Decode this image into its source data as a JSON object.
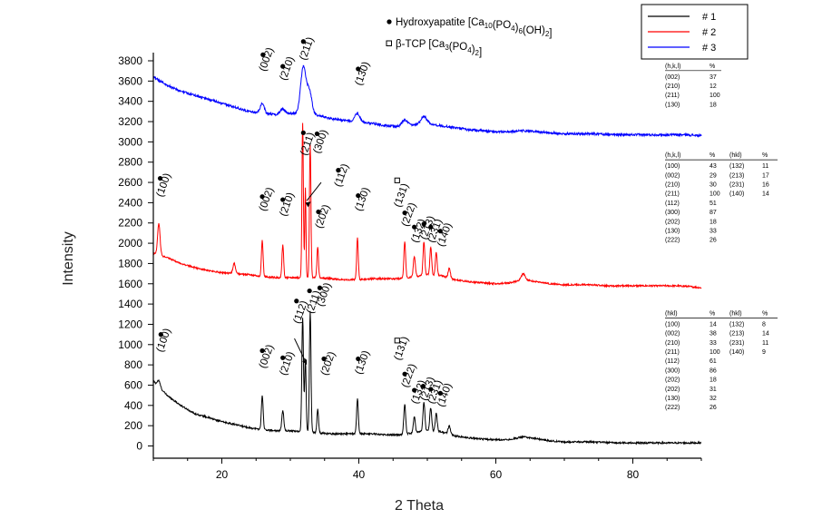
{
  "chart_data": {
    "type": "line",
    "xlabel": "2 Theta",
    "ylabel": "Intensity",
    "xlim": [
      10,
      90
    ],
    "ylim": [
      -100,
      3950
    ],
    "x_ticks": [
      20,
      40,
      60,
      80
    ],
    "y_ticks": [
      0,
      200,
      400,
      600,
      800,
      1000,
      1200,
      1400,
      1600,
      1800,
      2000,
      2200,
      2400,
      2600,
      2800,
      3000,
      3200,
      3400,
      3600,
      3800
    ],
    "legend_position": "top-right",
    "grid": false,
    "series": [
      {
        "name": "# 1",
        "color": "#000000",
        "baseline": [
          [
            10,
            640
          ],
          [
            12,
            500
          ],
          [
            14,
            400
          ],
          [
            16,
            320
          ],
          [
            18,
            280
          ],
          [
            20,
            240
          ],
          [
            22,
            210
          ],
          [
            24,
            180
          ],
          [
            26,
            160
          ],
          [
            28,
            150
          ],
          [
            30,
            150
          ],
          [
            32,
            140
          ],
          [
            34,
            130
          ],
          [
            36,
            120
          ],
          [
            38,
            120
          ],
          [
            40,
            120
          ],
          [
            42,
            120
          ],
          [
            44,
            110
          ],
          [
            46,
            110
          ],
          [
            48,
            130
          ],
          [
            50,
            150
          ],
          [
            52,
            140
          ],
          [
            54,
            100
          ],
          [
            56,
            80
          ],
          [
            58,
            70
          ],
          [
            60,
            60
          ],
          [
            62,
            65
          ],
          [
            64,
            90
          ],
          [
            66,
            70
          ],
          [
            68,
            50
          ],
          [
            70,
            40
          ],
          [
            72,
            40
          ],
          [
            74,
            40
          ],
          [
            76,
            35
          ],
          [
            78,
            30
          ],
          [
            80,
            30
          ],
          [
            82,
            30
          ],
          [
            84,
            30
          ],
          [
            86,
            30
          ],
          [
            88,
            30
          ],
          [
            90,
            30
          ]
        ],
        "peaks": [
          [
            10.8,
            60,
            0.3
          ],
          [
            25.9,
            340,
            0.18
          ],
          [
            28.9,
            200,
            0.2
          ],
          [
            31.8,
            1130,
            0.17
          ],
          [
            32.2,
            720,
            0.15
          ],
          [
            32.9,
            1200,
            0.16
          ],
          [
            34.0,
            230,
            0.17
          ],
          [
            39.8,
            340,
            0.18
          ],
          [
            46.7,
            290,
            0.2
          ],
          [
            48.1,
            160,
            0.2
          ],
          [
            49.5,
            280,
            0.2
          ],
          [
            50.5,
            230,
            0.2
          ],
          [
            51.3,
            180,
            0.2
          ],
          [
            53.2,
            80,
            0.25
          ]
        ]
      },
      {
        "name": "# 2",
        "color": "#ff0000",
        "baseline": [
          [
            10,
            1900
          ],
          [
            12,
            1860
          ],
          [
            14,
            1800
          ],
          [
            16,
            1760
          ],
          [
            18,
            1730
          ],
          [
            20,
            1710
          ],
          [
            22,
            1700
          ],
          [
            24,
            1690
          ],
          [
            26,
            1670
          ],
          [
            28,
            1660
          ],
          [
            30,
            1660
          ],
          [
            32,
            1660
          ],
          [
            34,
            1660
          ],
          [
            36,
            1650
          ],
          [
            38,
            1640
          ],
          [
            40,
            1640
          ],
          [
            42,
            1650
          ],
          [
            44,
            1650
          ],
          [
            46,
            1650
          ],
          [
            48,
            1670
          ],
          [
            50,
            1690
          ],
          [
            52,
            1680
          ],
          [
            54,
            1640
          ],
          [
            56,
            1620
          ],
          [
            58,
            1610
          ],
          [
            60,
            1600
          ],
          [
            62,
            1610
          ],
          [
            64,
            1640
          ],
          [
            66,
            1620
          ],
          [
            68,
            1600
          ],
          [
            70,
            1590
          ],
          [
            72,
            1590
          ],
          [
            74,
            1590
          ],
          [
            76,
            1580
          ],
          [
            78,
            1580
          ],
          [
            80,
            1580
          ],
          [
            82,
            1580
          ],
          [
            84,
            1580
          ],
          [
            86,
            1580
          ],
          [
            88,
            1575
          ],
          [
            90,
            1560
          ]
        ],
        "peaks": [
          [
            10.8,
            310,
            0.25
          ],
          [
            21.8,
            100,
            0.25
          ],
          [
            25.9,
            360,
            0.17
          ],
          [
            28.9,
            320,
            0.17
          ],
          [
            31.8,
            1520,
            0.15
          ],
          [
            32.2,
            880,
            0.12
          ],
          [
            32.9,
            1320,
            0.15
          ],
          [
            34.0,
            300,
            0.16
          ],
          [
            39.8,
            410,
            0.17
          ],
          [
            46.7,
            360,
            0.18
          ],
          [
            48.1,
            200,
            0.2
          ],
          [
            49.5,
            330,
            0.18
          ],
          [
            50.5,
            280,
            0.18
          ],
          [
            51.3,
            230,
            0.18
          ],
          [
            53.2,
            100,
            0.22
          ],
          [
            64.0,
            60,
            0.4
          ]
        ]
      },
      {
        "name": "# 3",
        "color": "#0000ff",
        "baseline": [
          [
            10,
            3640
          ],
          [
            12,
            3560
          ],
          [
            14,
            3500
          ],
          [
            16,
            3460
          ],
          [
            18,
            3420
          ],
          [
            20,
            3380
          ],
          [
            22,
            3340
          ],
          [
            24,
            3300
          ],
          [
            26,
            3280
          ],
          [
            28,
            3270
          ],
          [
            30,
            3280
          ],
          [
            32,
            3280
          ],
          [
            34,
            3260
          ],
          [
            36,
            3230
          ],
          [
            38,
            3210
          ],
          [
            40,
            3200
          ],
          [
            42,
            3180
          ],
          [
            44,
            3160
          ],
          [
            46,
            3150
          ],
          [
            48,
            3170
          ],
          [
            50,
            3180
          ],
          [
            52,
            3160
          ],
          [
            54,
            3140
          ],
          [
            56,
            3120
          ],
          [
            58,
            3110
          ],
          [
            60,
            3100
          ],
          [
            62,
            3100
          ],
          [
            64,
            3110
          ],
          [
            66,
            3100
          ],
          [
            68,
            3090
          ],
          [
            70,
            3080
          ],
          [
            72,
            3080
          ],
          [
            74,
            3080
          ],
          [
            76,
            3075
          ],
          [
            78,
            3070
          ],
          [
            80,
            3070
          ],
          [
            82,
            3070
          ],
          [
            84,
            3070
          ],
          [
            86,
            3070
          ],
          [
            88,
            3070
          ],
          [
            90,
            3060
          ]
        ],
        "peaks": [
          [
            25.9,
            100,
            0.4
          ],
          [
            28.9,
            50,
            0.5
          ],
          [
            31.9,
            460,
            0.55
          ],
          [
            32.8,
            220,
            0.5
          ],
          [
            39.8,
            80,
            0.5
          ],
          [
            46.7,
            60,
            0.6
          ],
          [
            49.5,
            70,
            0.6
          ]
        ]
      }
    ],
    "top_markers": [
      {
        "label": "(002)",
        "marker": "●",
        "lx": 25.8,
        "ly": 3690,
        "mx": 26.0,
        "my": 3860
      },
      {
        "label": "(210)",
        "marker": "●",
        "lx": 28.8,
        "ly": 3600,
        "mx": 28.9,
        "my": 3745
      },
      {
        "label": "(211)",
        "marker": "●",
        "lx": 31.7,
        "ly": 3800,
        "mx": 31.9,
        "my": 3990
      },
      {
        "label": "(130)",
        "marker": "●",
        "lx": 39.8,
        "ly": 3550,
        "mx": 39.9,
        "my": 3720
      }
    ],
    "mid_markers": [
      {
        "label": "(100)",
        "marker": "●",
        "lx": 10.8,
        "ly": 2450,
        "mx": 11.0,
        "my": 2640
      },
      {
        "label": "(002)",
        "marker": "●",
        "lx": 25.8,
        "ly": 2310,
        "mx": 25.9,
        "my": 2460
      },
      {
        "label": "(210)",
        "marker": "●",
        "lx": 28.8,
        "ly": 2260,
        "mx": 28.9,
        "my": 2430
      },
      {
        "label": "(211)",
        "marker": "●",
        "lx": 31.8,
        "ly": 2860,
        "mx": 31.9,
        "my": 3090
      },
      {
        "label": "(300)",
        "marker": "●",
        "lx": 33.7,
        "ly": 2880,
        "mx": 33.9,
        "my": 3080
      },
      {
        "label": "(112)",
        "marker": "●",
        "lx": 36.8,
        "ly": 2550,
        "mx": 37.0,
        "my": 2720
      },
      {
        "label": "(202)",
        "marker": "●",
        "lx": 34.0,
        "ly": 2140,
        "mx": 34.1,
        "my": 2310
      },
      {
        "label": "(130)",
        "marker": "●",
        "lx": 39.8,
        "ly": 2310,
        "mx": 39.9,
        "my": 2470
      },
      {
        "label": "(131)",
        "marker": "□",
        "lx": 45.5,
        "ly": 2350,
        "mx": 45.6,
        "my": 2620
      },
      {
        "label": "(222)",
        "marker": "●",
        "lx": 46.6,
        "ly": 2160,
        "mx": 46.7,
        "my": 2300
      },
      {
        "label": "(132)",
        "marker": "●",
        "lx": 48.0,
        "ly": 2000,
        "mx": 48.1,
        "my": 2160
      },
      {
        "label": "(213)",
        "marker": "●",
        "lx": 49.3,
        "ly": 2030,
        "mx": 49.5,
        "my": 2190
      },
      {
        "label": "(231)",
        "marker": "●",
        "lx": 50.4,
        "ly": 2000,
        "mx": 50.5,
        "my": 2160
      },
      {
        "label": "(140)",
        "marker": "●",
        "lx": 51.8,
        "ly": 1960,
        "mx": 51.9,
        "my": 2120
      }
    ],
    "bottom_markers": [
      {
        "label": "(100)",
        "marker": "●",
        "lx": 10.8,
        "ly": 920,
        "mx": 11.1,
        "my": 1100
      },
      {
        "label": "(002)",
        "marker": "●",
        "lx": 25.8,
        "ly": 760,
        "mx": 25.9,
        "my": 940
      },
      {
        "label": "(210)",
        "marker": "●",
        "lx": 28.8,
        "ly": 690,
        "mx": 28.9,
        "my": 870
      },
      {
        "label": "(112)",
        "marker": "●",
        "lx": 30.8,
        "ly": 1200,
        "mx": 30.9,
        "my": 1430
      },
      {
        "label": "(211)",
        "marker": "●",
        "lx": 32.7,
        "ly": 1300,
        "mx": 32.8,
        "my": 1530
      },
      {
        "label": "(300)",
        "marker": "●",
        "lx": 34.2,
        "ly": 1370,
        "mx": 34.3,
        "my": 1560
      },
      {
        "label": "(202)",
        "marker": "●",
        "lx": 34.8,
        "ly": 690,
        "mx": 34.9,
        "my": 860
      },
      {
        "label": "(130)",
        "marker": "●",
        "lx": 39.8,
        "ly": 700,
        "mx": 39.9,
        "my": 860
      },
      {
        "label": "(131)",
        "marker": "□",
        "lx": 45.5,
        "ly": 840,
        "mx": 45.6,
        "my": 1040
      },
      {
        "label": "(222)",
        "marker": "●",
        "lx": 46.6,
        "ly": 570,
        "mx": 46.7,
        "my": 710
      },
      {
        "label": "(132)",
        "marker": "●",
        "lx": 48.0,
        "ly": 410,
        "mx": 48.1,
        "my": 550
      },
      {
        "label": "(213)",
        "marker": "●",
        "lx": 49.3,
        "ly": 440,
        "mx": 49.4,
        "my": 590
      },
      {
        "label": "(231)",
        "marker": "●",
        "lx": 50.4,
        "ly": 410,
        "mx": 50.5,
        "my": 560
      },
      {
        "label": "(140)",
        "marker": "●",
        "lx": 51.8,
        "ly": 380,
        "mx": 51.9,
        "my": 520
      }
    ],
    "phase_legend": [
      {
        "marker": "●",
        "text": "Hydroxyapatite [Ca",
        "sub1": "10",
        "mid": "(PO",
        "sub2": "4",
        "mid2": ")",
        "sub3": "6",
        "tail": "(OH)",
        "sub4": "2",
        "end": "]"
      },
      {
        "marker": "□",
        "text": "β-TCP [Ca",
        "sub1": "3",
        "mid": "(PO",
        "sub2": "4",
        "mid2": ")",
        "sub3": "2",
        "tail": "]",
        "sub4": "",
        "end": ""
      }
    ],
    "tables": [
      {
        "anchor_y": 3730,
        "headers": [
          "(h,k,l)",
          "%"
        ],
        "rows": [
          [
            "(002)",
            "37"
          ],
          [
            "(210)",
            "12"
          ],
          [
            "(211)",
            "100"
          ],
          [
            "(130)",
            "18"
          ]
        ]
      },
      {
        "anchor_y": 2850,
        "headers": [
          "(h,k,l)",
          "%",
          "(hkl)",
          "%"
        ],
        "rows": [
          [
            "(100)",
            "43",
            "(132)",
            "11"
          ],
          [
            "(002)",
            "29",
            "(213)",
            "17"
          ],
          [
            "(210)",
            "30",
            "(231)",
            "16"
          ],
          [
            "(211)",
            "100",
            "(140)",
            "14"
          ],
          [
            "(112)",
            "51",
            "",
            ""
          ],
          [
            "(300)",
            "87",
            "",
            ""
          ],
          [
            "(202)",
            "18",
            "",
            ""
          ],
          [
            "(130)",
            "33",
            "",
            ""
          ],
          [
            "(222)",
            "26",
            "",
            ""
          ]
        ]
      },
      {
        "anchor_y": 1290,
        "headers": [
          "(hkl)",
          "%",
          "(hkl)",
          "%"
        ],
        "rows": [
          [
            "(100)",
            "14",
            "(132)",
            "8"
          ],
          [
            "(002)",
            "38",
            "(213)",
            "14"
          ],
          [
            "(210)",
            "33",
            "(231)",
            "11"
          ],
          [
            "(211)",
            "100",
            "(140)",
            "9"
          ],
          [
            "(112)",
            "61",
            "",
            ""
          ],
          [
            "(300)",
            "86",
            "",
            ""
          ],
          [
            "(202)",
            "18",
            "",
            ""
          ],
          [
            "(202)",
            "31",
            "",
            ""
          ],
          [
            "(130)",
            "32",
            "",
            ""
          ],
          [
            "(222)",
            "26",
            "",
            ""
          ]
        ]
      }
    ]
  }
}
